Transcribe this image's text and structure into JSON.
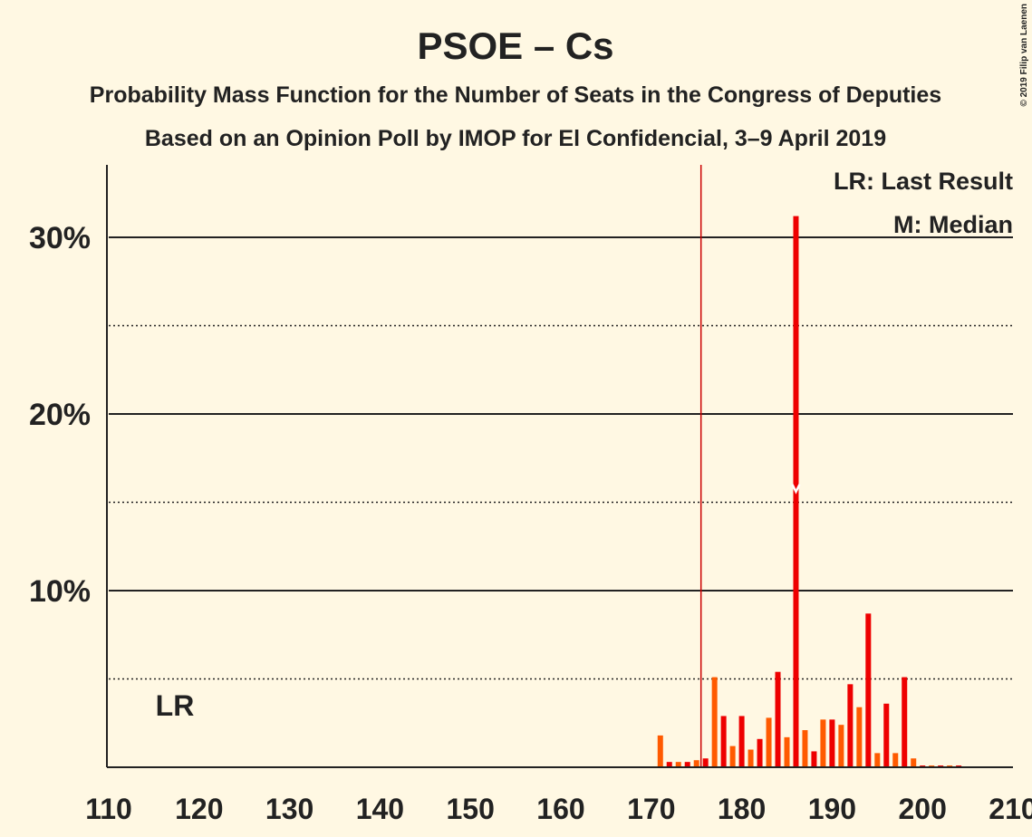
{
  "chart_data": {
    "type": "bar",
    "title": "PSOE – Cs",
    "subtitle": "Probability Mass Function for the Number of Seats in the Congress of Deputies",
    "subtitle2": "Based on an Opinion Poll by IMOP for El Confidencial, 3–9 April 2019",
    "copyright": "© 2019 Filip van Laenen",
    "legend": [
      "LR: Last Result",
      "M: Median"
    ],
    "lr_label": "LR",
    "last_result": 176,
    "median": 186,
    "x": [
      110,
      111,
      112,
      113,
      114,
      115,
      116,
      117,
      118,
      119,
      120,
      121,
      122,
      123,
      124,
      125,
      126,
      127,
      128,
      129,
      130,
      131,
      132,
      133,
      134,
      135,
      136,
      137,
      138,
      139,
      140,
      141,
      142,
      143,
      144,
      145,
      146,
      147,
      148,
      149,
      150,
      151,
      152,
      153,
      154,
      155,
      156,
      157,
      158,
      159,
      160,
      161,
      162,
      163,
      164,
      165,
      166,
      167,
      168,
      169,
      170,
      171,
      172,
      173,
      174,
      175,
      176,
      177,
      178,
      179,
      180,
      181,
      182,
      183,
      184,
      185,
      186,
      187,
      188,
      189,
      190,
      191,
      192,
      193,
      194,
      195,
      196,
      197,
      198,
      199,
      200,
      201,
      202,
      203,
      204,
      205,
      206,
      207,
      208,
      209,
      210
    ],
    "values": [
      0,
      0,
      0,
      0,
      0,
      0,
      0,
      0,
      0,
      0,
      0,
      0,
      0,
      0,
      0,
      0,
      0,
      0,
      0,
      0,
      0,
      0,
      0,
      0,
      0,
      0,
      0,
      0,
      0,
      0,
      0,
      0,
      0,
      0,
      0,
      0,
      0,
      0,
      0,
      0,
      0,
      0,
      0,
      0,
      0,
      0,
      0,
      0,
      0,
      0,
      0,
      0,
      0,
      0,
      0,
      0,
      0,
      0,
      0,
      0,
      0,
      1.8,
      0.3,
      0.3,
      0.3,
      0.4,
      0.5,
      5.1,
      2.9,
      1.2,
      2.9,
      1.0,
      1.6,
      2.8,
      5.4,
      1.7,
      31.2,
      2.1,
      0.9,
      2.7,
      2.7,
      2.4,
      4.7,
      3.4,
      8.7,
      0.8,
      3.6,
      0.8,
      5.1,
      0.5,
      0.1,
      0.1,
      0.1,
      0.1,
      0.1,
      0,
      0,
      0,
      0,
      0,
      0
    ],
    "colors": [
      "#ee0000",
      "#ff5a00"
    ],
    "xlim": [
      110,
      210
    ],
    "xticks": [
      110,
      120,
      130,
      140,
      150,
      160,
      170,
      180,
      190,
      200,
      210
    ],
    "ylim": [
      0,
      34.1
    ],
    "yticks": [
      {
        "value": 10,
        "label": "10%"
      },
      {
        "value": 20,
        "label": "20%"
      },
      {
        "value": 30,
        "label": "30%"
      }
    ],
    "minor_gridlines": [
      5,
      15,
      25
    ]
  }
}
